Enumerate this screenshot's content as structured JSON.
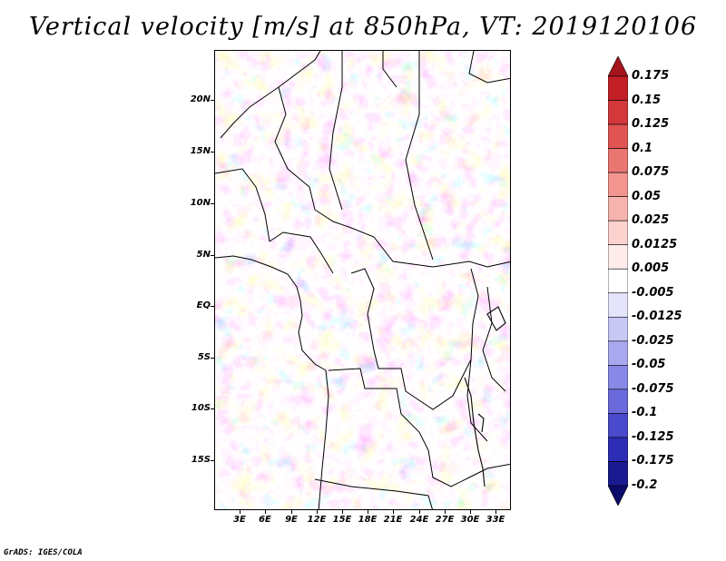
{
  "title": "Vertical velocity [m/s] at 850hPa, VT: 2019120106",
  "lat_labels": [
    "20N",
    "15N",
    "10N",
    "5N",
    "EQ",
    "5S",
    "10S",
    "15S"
  ],
  "lon_labels": [
    "3E",
    "6E",
    "9E",
    "12E",
    "15E",
    "18E",
    "21E",
    "24E",
    "27E",
    "30E",
    "33E"
  ],
  "colorbar": {
    "labels": [
      "0.175",
      "0.15",
      "0.125",
      "0.1",
      "0.075",
      "0.05",
      "0.025",
      "0.0125",
      "0.005",
      "-0.005",
      "-0.0125",
      "-0.025",
      "-0.05",
      "-0.075",
      "-0.1",
      "-0.125",
      "-0.175",
      "-0.2"
    ],
    "colors": [
      "#a5141c",
      "#c21f26",
      "#d3383a",
      "#e05553",
      "#ea7672",
      "#f2958f",
      "#f7b3ae",
      "#fbd2ce",
      "#fdeceb",
      "#ffffff",
      "#e4e4fb",
      "#c8c8f5",
      "#a8a8ee",
      "#8888e6",
      "#6a6adc",
      "#4a4acc",
      "#2c2cb4",
      "#1a1a90",
      "#0b0b6a"
    ]
  },
  "credit": "GrADS: IGES/COLA"
}
